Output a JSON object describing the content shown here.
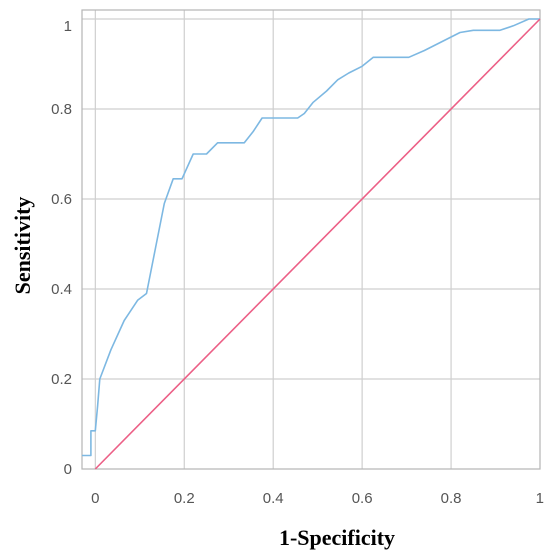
{
  "chart_data": {
    "type": "line",
    "title": "",
    "xlabel": "1-Specificity",
    "ylabel": "Sensitivity",
    "xlim": [
      -0.03,
      1
    ],
    "ylim": [
      0,
      1.02
    ],
    "grid": true,
    "x_ticks": [
      0,
      0.2,
      0.4,
      0.6,
      0.8,
      1
    ],
    "x_tick_labels": [
      "0",
      "0.2",
      "0.4",
      "0.6",
      "0.8",
      "1"
    ],
    "y_ticks": [
      0,
      0.2,
      0.4,
      0.6,
      0.8,
      1
    ],
    "y_tick_labels": [
      "0",
      "0.2",
      "0.4",
      "0.6",
      "0.8",
      "1"
    ],
    "series": [
      {
        "color": "#7db8e2",
        "x": [
          -0.03,
          -0.01,
          -0.01,
          0.0,
          0.005,
          0.01,
          0.035,
          0.065,
          0.095,
          0.115,
          0.135,
          0.155,
          0.175,
          0.195,
          0.22,
          0.25,
          0.275,
          0.31,
          0.335,
          0.355,
          0.375,
          0.395,
          0.42,
          0.455,
          0.47,
          0.49,
          0.52,
          0.545,
          0.57,
          0.6,
          0.625,
          0.65,
          0.675,
          0.705,
          0.74,
          0.78,
          0.82,
          0.85,
          0.885,
          0.91,
          0.94,
          0.975,
          1.0
        ],
        "y": [
          0.03,
          0.03,
          0.085,
          0.085,
          0.14,
          0.2,
          0.265,
          0.33,
          0.375,
          0.39,
          0.49,
          0.59,
          0.645,
          0.645,
          0.7,
          0.7,
          0.725,
          0.725,
          0.725,
          0.75,
          0.78,
          0.78,
          0.78,
          0.78,
          0.79,
          0.815,
          0.84,
          0.865,
          0.88,
          0.895,
          0.915,
          0.915,
          0.915,
          0.915,
          0.93,
          0.95,
          0.97,
          0.975,
          0.975,
          0.975,
          0.985,
          1.0,
          1.0
        ]
      },
      {
        "color": "#ec5f86",
        "x": [
          0,
          1
        ],
        "y": [
          0,
          1
        ]
      }
    ]
  }
}
